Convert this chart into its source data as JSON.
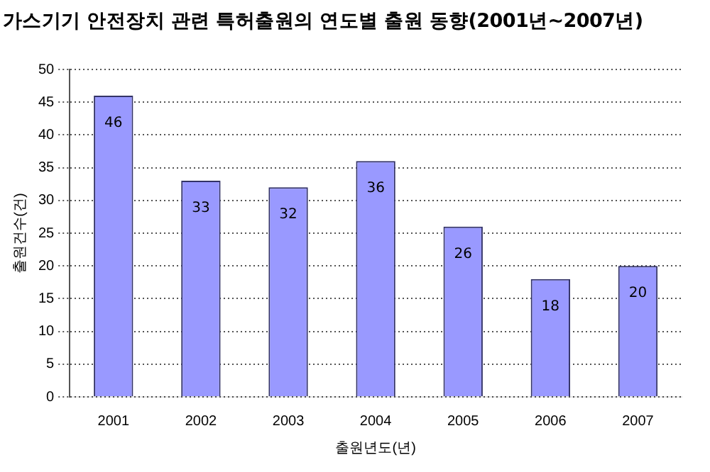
{
  "chart_data": {
    "type": "bar",
    "title": "가스기기 안전장치 관련 특허출원의 연도별 출원 동향(2001년~2007년)",
    "xlabel": "출원년도(년)",
    "ylabel": "출원건수(건)",
    "categories": [
      "2001",
      "2002",
      "2003",
      "2004",
      "2005",
      "2006",
      "2007"
    ],
    "values": [
      46,
      33,
      32,
      36,
      26,
      18,
      20
    ],
    "color": "#9999ff",
    "ylim": [
      0,
      50
    ],
    "yticks": [
      0,
      5,
      10,
      15,
      20,
      25,
      30,
      35,
      40,
      45,
      50
    ],
    "grid": "y",
    "data_labels": true
  }
}
